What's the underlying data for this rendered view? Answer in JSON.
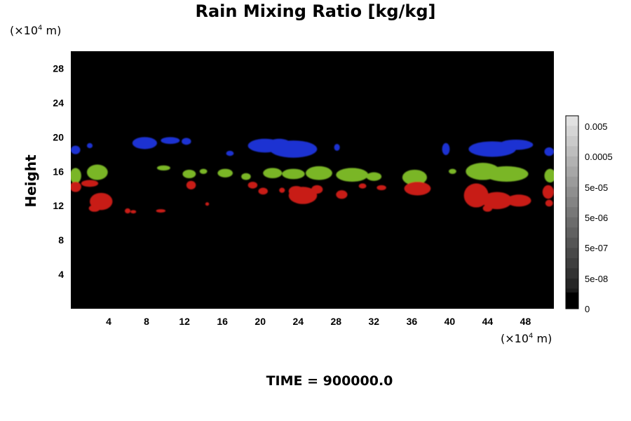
{
  "chart_data": {
    "type": "heatmap",
    "title": "Rain Mixing Ratio [kg/kg]",
    "ylabel": "Height",
    "y_unit": "(×10",
    "x_unit": "(×10",
    "unit_exp": "4",
    "unit_tail": " m)",
    "xlim": [
      0,
      51
    ],
    "ylim": [
      0,
      30
    ],
    "xticks": [
      4,
      8,
      12,
      16,
      20,
      24,
      28,
      32,
      36,
      40,
      44,
      48
    ],
    "yticks": [
      4,
      8,
      12,
      16,
      20,
      24,
      28
    ],
    "background_color": "#000000",
    "colorbar": {
      "labels": [
        "0.005",
        "0.0005",
        "5e-05",
        "5e-06",
        "5e-07",
        "5e-08",
        "0"
      ],
      "levels": 19
    },
    "regions": [
      {
        "name": "blue",
        "color": "#1e32d2",
        "blobs": [
          [
            0.5,
            18.5,
            0.5,
            0.5
          ],
          [
            2,
            19,
            0.3,
            0.3
          ],
          [
            7.8,
            19.3,
            1.3,
            0.7
          ],
          [
            10.5,
            19.6,
            1.0,
            0.4
          ],
          [
            12.2,
            19.5,
            0.5,
            0.4
          ],
          [
            16.8,
            18.1,
            0.4,
            0.3
          ],
          [
            20.5,
            19.0,
            1.8,
            0.8
          ],
          [
            23.5,
            18.6,
            2.5,
            1.0
          ],
          [
            22.0,
            19.2,
            1.2,
            0.6
          ],
          [
            28.1,
            18.8,
            0.3,
            0.4
          ],
          [
            39.6,
            18.6,
            0.4,
            0.7
          ],
          [
            44.5,
            18.6,
            2.5,
            0.9
          ],
          [
            47.0,
            19.1,
            1.8,
            0.6
          ],
          [
            50.5,
            18.3,
            0.5,
            0.5
          ]
        ]
      },
      {
        "name": "green",
        "color": "#7ab628",
        "blobs": [
          [
            0.5,
            15.5,
            0.6,
            0.9
          ],
          [
            2.8,
            15.9,
            1.1,
            0.9
          ],
          [
            9.8,
            16.4,
            0.7,
            0.3
          ],
          [
            12.5,
            15.7,
            0.7,
            0.5
          ],
          [
            14.0,
            16.0,
            0.4,
            0.3
          ],
          [
            16.3,
            15.8,
            0.8,
            0.5
          ],
          [
            18.5,
            15.4,
            0.5,
            0.4
          ],
          [
            21.3,
            15.8,
            1.0,
            0.6
          ],
          [
            23.5,
            15.7,
            1.2,
            0.6
          ],
          [
            26.2,
            15.8,
            1.4,
            0.8
          ],
          [
            29.7,
            15.6,
            1.7,
            0.8
          ],
          [
            32.0,
            15.4,
            0.8,
            0.5
          ],
          [
            36.3,
            15.3,
            1.3,
            0.9
          ],
          [
            40.3,
            16.0,
            0.4,
            0.3
          ],
          [
            43.5,
            16.0,
            1.8,
            1.0
          ],
          [
            46.0,
            15.7,
            2.3,
            0.9
          ],
          [
            50.6,
            15.5,
            0.6,
            0.8
          ]
        ]
      },
      {
        "name": "red",
        "color": "#c81a14",
        "blobs": [
          [
            0.5,
            14.2,
            0.6,
            0.6
          ],
          [
            2.0,
            14.6,
            0.9,
            0.4
          ],
          [
            3.2,
            12.5,
            1.2,
            1.0
          ],
          [
            2.5,
            11.7,
            0.6,
            0.4
          ],
          [
            6.0,
            11.4,
            0.3,
            0.3
          ],
          [
            6.6,
            11.3,
            0.3,
            0.2
          ],
          [
            9.5,
            11.4,
            0.5,
            0.2
          ],
          [
            12.7,
            14.4,
            0.5,
            0.5
          ],
          [
            14.4,
            12.2,
            0.2,
            0.2
          ],
          [
            19.2,
            14.4,
            0.5,
            0.4
          ],
          [
            20.3,
            13.7,
            0.5,
            0.4
          ],
          [
            22.3,
            13.8,
            0.3,
            0.3
          ],
          [
            24.5,
            13.2,
            1.5,
            1.0
          ],
          [
            23.8,
            13.7,
            0.8,
            0.6
          ],
          [
            26.0,
            13.9,
            0.6,
            0.5
          ],
          [
            28.6,
            13.3,
            0.6,
            0.5
          ],
          [
            30.8,
            14.3,
            0.4,
            0.3
          ],
          [
            32.8,
            14.1,
            0.5,
            0.3
          ],
          [
            36.6,
            14.0,
            1.4,
            0.8
          ],
          [
            42.8,
            13.2,
            1.3,
            1.4
          ],
          [
            45.0,
            12.6,
            1.6,
            1.0
          ],
          [
            47.3,
            12.6,
            1.3,
            0.7
          ],
          [
            44.0,
            11.7,
            0.5,
            0.4
          ],
          [
            50.4,
            13.6,
            0.6,
            0.8
          ],
          [
            50.5,
            12.3,
            0.4,
            0.4
          ]
        ]
      }
    ]
  },
  "footer": {
    "time_label": "TIME = 900000.0"
  }
}
